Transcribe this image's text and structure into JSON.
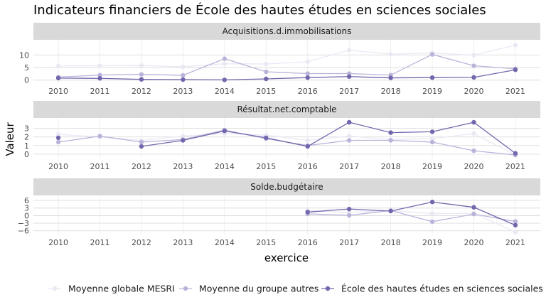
{
  "chart_data": {
    "type": "line",
    "title": "Indicateurs financiers de École des hautes études en sciences sociales",
    "xlabel": "exercice",
    "ylabel": "Valeur",
    "x": [
      2010,
      2011,
      2012,
      2013,
      2014,
      2015,
      2016,
      2017,
      2018,
      2019,
      2020,
      2021
    ],
    "legend": {
      "placement": "bottom",
      "entries": [
        {
          "name": "Moyenne globale MESRI",
          "color": "#ebe8f4"
        },
        {
          "name": "Moyenne du groupe autres",
          "color": "#b9b5da"
        },
        {
          "name": "École des hautes études en sciences sociales",
          "color": "#7366ad"
        }
      ]
    },
    "panels": [
      {
        "strip": "Acquisitions.d.immobilisations",
        "ylim": [
          -1.2,
          16
        ],
        "yticks": [
          0,
          5,
          10
        ],
        "series": [
          {
            "name": "Moyenne globale MESRI",
            "values": [
              5.6,
              5.7,
              5.8,
              5.3,
              6.5,
              6.4,
              7.3,
              11.9,
              10.3,
              10.8,
              9.9,
              13.9
            ]
          },
          {
            "name": "Moyenne du groupe autres",
            "values": [
              1.2,
              2.0,
              2.3,
              1.9,
              8.5,
              3.3,
              2.6,
              2.6,
              2.0,
              10.2,
              5.7,
              4.5
            ]
          },
          {
            "name": "École des hautes études en sciences sociales",
            "values": [
              0.8,
              0.7,
              0.3,
              0.2,
              0.1,
              0.5,
              1.0,
              1.4,
              0.9,
              1.0,
              1.1,
              4.1
            ]
          }
        ]
      },
      {
        "strip": "Résultat.net.comptable",
        "ylim": [
          -0.5,
          4.2
        ],
        "yticks": [
          0,
          1,
          2,
          3
        ],
        "series": [
          {
            "name": "Moyenne globale MESRI",
            "values": [
              2.3,
              2.0,
              1.6,
              2.1,
              2.4,
              2.2,
              1.6,
              2.1,
              1.7,
              1.8,
              2.4,
              -0.1
            ]
          },
          {
            "name": "Moyenne du groupe autres",
            "values": [
              1.4,
              2.1,
              1.4,
              1.7,
              2.8,
              1.8,
              1.0,
              1.6,
              1.6,
              1.4,
              0.4,
              -0.1
            ]
          },
          {
            "name": "École des hautes études en sciences sociales",
            "values": [
              1.9,
              null,
              0.9,
              1.6,
              2.7,
              1.9,
              0.9,
              3.7,
              2.5,
              2.6,
              3.7,
              0.1
            ]
          }
        ]
      },
      {
        "strip": "Solde.budgétaire",
        "ylim": [
          -7.5,
          8
        ],
        "yticks": [
          -6,
          -3,
          0,
          3,
          6
        ],
        "series": [
          {
            "name": "Moyenne globale MESRI",
            "values": [
              null,
              null,
              null,
              null,
              null,
              null,
              2.0,
              1.2,
              2.0,
              0.8,
              0.9,
              -6.5
            ]
          },
          {
            "name": "Moyenne du groupe autres",
            "values": [
              null,
              null,
              null,
              null,
              null,
              null,
              0.7,
              0.1,
              2.0,
              -2.4,
              0.6,
              -2.3
            ]
          },
          {
            "name": "École des hautes études en sciences sociales",
            "values": [
              null,
              null,
              null,
              null,
              null,
              null,
              1.4,
              2.6,
              1.8,
              5.4,
              3.3,
              -3.8
            ]
          }
        ]
      }
    ]
  }
}
